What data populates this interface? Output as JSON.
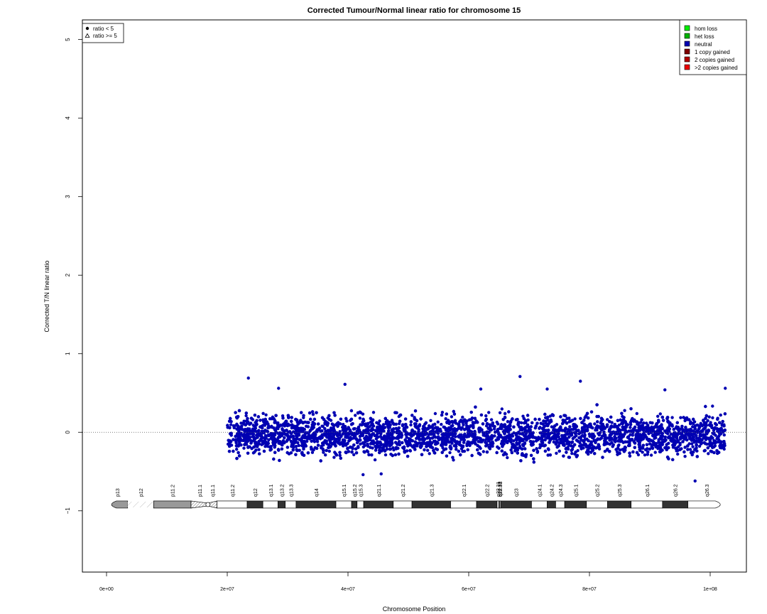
{
  "chart_data": {
    "type": "scatter",
    "title": "Corrected Tumour/Normal linear ratio for chromosome  15",
    "xlabel": "Chromosome Position",
    "ylabel": "Corrected T/N linear ratio",
    "xlim": [
      -4000000,
      106000000
    ],
    "ylim": [
      -1.78,
      5.25
    ],
    "x_ticks": [
      {
        "value": 0,
        "label": "0e+00"
      },
      {
        "value": 20000000,
        "label": "2e+07"
      },
      {
        "value": 40000000,
        "label": "4e+07"
      },
      {
        "value": 60000000,
        "label": "6e+07"
      },
      {
        "value": 80000000,
        "label": "8e+07"
      },
      {
        "value": 100000000,
        "label": "1e+08"
      }
    ],
    "y_ticks": [
      {
        "value": -1,
        "label": "−1"
      },
      {
        "value": 0,
        "label": "0"
      },
      {
        "value": 1,
        "label": "1"
      },
      {
        "value": 2,
        "label": "2"
      },
      {
        "value": 3,
        "label": "3"
      },
      {
        "value": 4,
        "label": "4"
      },
      {
        "value": 5,
        "label": "5"
      }
    ],
    "reference_line": {
      "y": 0,
      "style": "dotted"
    },
    "point_color": "#0000b2",
    "series": [
      {
        "name": "neutral",
        "x_range": [
          20000000,
          102500000
        ],
        "y_band": [
          -0.45,
          0.38
        ],
        "sparse_x_ranges": [
          [
            20000000,
            21500000
          ],
          [
            82600000,
            83200000
          ]
        ],
        "outliers": [
          {
            "x": 23500000,
            "y": 0.69
          },
          {
            "x": 39500000,
            "y": 0.61
          },
          {
            "x": 68500000,
            "y": 0.71
          },
          {
            "x": 78500000,
            "y": 0.65
          },
          {
            "x": 102500000,
            "y": 0.56
          },
          {
            "x": 28500000,
            "y": 0.56
          },
          {
            "x": 62000000,
            "y": 0.55
          },
          {
            "x": 92500000,
            "y": 0.54
          },
          {
            "x": 73000000,
            "y": 0.55
          },
          {
            "x": 97500000,
            "y": -0.62
          },
          {
            "x": 45500000,
            "y": -0.53
          },
          {
            "x": 42500000,
            "y": -0.54
          }
        ]
      }
    ],
    "legend_shape": {
      "position": "top-left",
      "items": [
        {
          "symbol": "filled-circle",
          "label": "ratio < 5"
        },
        {
          "symbol": "open-triangle",
          "label": "ratio >= 5"
        }
      ]
    },
    "legend_color": {
      "position": "top-right",
      "items": [
        {
          "color": "#00ee00",
          "label": "hom loss"
        },
        {
          "color": "#00b200",
          "label": "het loss"
        },
        {
          "color": "#0000b2",
          "label": "neutral"
        },
        {
          "color": "#7f0000",
          "label": "1 copy gained"
        },
        {
          "color": "#b20000",
          "label": "2 copies gained"
        },
        {
          "color": "#ee0000",
          "label": ">2 copies gained"
        }
      ]
    },
    "ideogram": {
      "y": -0.92,
      "bands": [
        {
          "name": "p13",
          "start": 0,
          "end": 3500000,
          "stain": "gvar"
        },
        {
          "name": "p12",
          "start": 3500000,
          "end": 7800000,
          "stain": "stalk"
        },
        {
          "name": "p11.2",
          "start": 7800000,
          "end": 14000000,
          "stain": "gvar"
        },
        {
          "name": "p11.1",
          "start": 14000000,
          "end": 16800000,
          "stain": "acen"
        },
        {
          "name": "q11.1",
          "start": 16800000,
          "end": 18300000,
          "stain": "acen"
        },
        {
          "name": "q11.2",
          "start": 18300000,
          "end": 23300000,
          "stain": "gneg"
        },
        {
          "name": "q12",
          "start": 23300000,
          "end": 25900000,
          "stain": "gpos50"
        },
        {
          "name": "q13.1",
          "start": 25900000,
          "end": 28400000,
          "stain": "gneg"
        },
        {
          "name": "q13.2",
          "start": 28400000,
          "end": 29600000,
          "stain": "gpos50"
        },
        {
          "name": "q13.3",
          "start": 29600000,
          "end": 31400000,
          "stain": "gneg"
        },
        {
          "name": "q14",
          "start": 31400000,
          "end": 38000000,
          "stain": "gpos75"
        },
        {
          "name": "q15.1",
          "start": 38000000,
          "end": 40600000,
          "stain": "gneg"
        },
        {
          "name": "q15.2",
          "start": 40600000,
          "end": 41500000,
          "stain": "gpos25"
        },
        {
          "name": "q15.3",
          "start": 41500000,
          "end": 42600000,
          "stain": "gneg"
        },
        {
          "name": "q21.1",
          "start": 42600000,
          "end": 47500000,
          "stain": "gpos75"
        },
        {
          "name": "q21.2",
          "start": 47500000,
          "end": 50600000,
          "stain": "gneg"
        },
        {
          "name": "q21.3",
          "start": 50600000,
          "end": 57000000,
          "stain": "gpos75"
        },
        {
          "name": "q22.1",
          "start": 57000000,
          "end": 61300000,
          "stain": "gneg"
        },
        {
          "name": "q22.2",
          "start": 61300000,
          "end": 64700000,
          "stain": "gpos25"
        },
        {
          "name": "q22.31",
          "start": 64700000,
          "end": 65000000,
          "stain": "gneg"
        },
        {
          "name": "q22.32",
          "start": 65000000,
          "end": 65100000,
          "stain": "gpos25"
        },
        {
          "name": "q22.33",
          "start": 65100000,
          "end": 65300000,
          "stain": "gneg"
        },
        {
          "name": "q23",
          "start": 65300000,
          "end": 70400000,
          "stain": "gpos25"
        },
        {
          "name": "q24.1",
          "start": 70400000,
          "end": 73000000,
          "stain": "gneg"
        },
        {
          "name": "q24.2",
          "start": 73000000,
          "end": 74400000,
          "stain": "gpos25"
        },
        {
          "name": "q24.3",
          "start": 74400000,
          "end": 75900000,
          "stain": "gneg"
        },
        {
          "name": "q25.1",
          "start": 75900000,
          "end": 79500000,
          "stain": "gpos50"
        },
        {
          "name": "q25.2",
          "start": 79500000,
          "end": 83000000,
          "stain": "gneg"
        },
        {
          "name": "q25.3",
          "start": 83000000,
          "end": 86900000,
          "stain": "gpos50"
        },
        {
          "name": "q26.1",
          "start": 86900000,
          "end": 92100000,
          "stain": "gneg"
        },
        {
          "name": "q26.2",
          "start": 92100000,
          "end": 96300000,
          "stain": "gpos50"
        },
        {
          "name": "q26.3",
          "start": 96300000,
          "end": 102500000,
          "stain": "gneg"
        }
      ]
    }
  }
}
